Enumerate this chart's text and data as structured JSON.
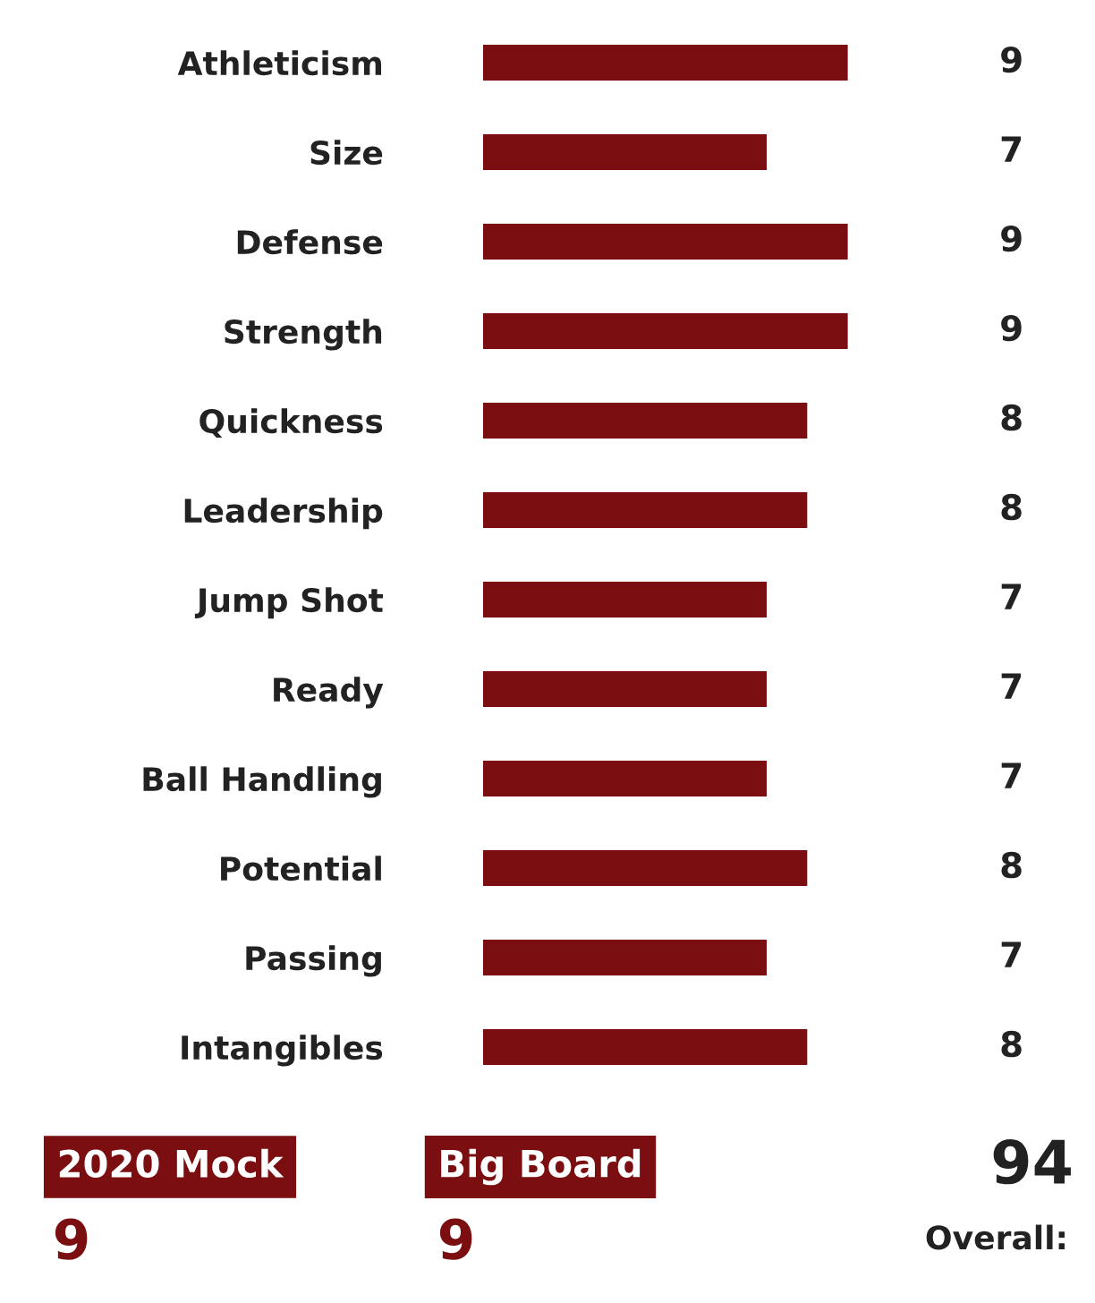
{
  "chart_data": {
    "type": "bar",
    "orientation": "horizontal",
    "categories": [
      "Athleticism",
      "Size",
      "Defense",
      "Strength",
      "Quickness",
      "Leadership",
      "Jump Shot",
      "Ready",
      "Ball Handling",
      "Potential",
      "Passing",
      "Intangibles"
    ],
    "values": [
      9,
      7,
      9,
      9,
      8,
      8,
      7,
      7,
      7,
      8,
      7,
      8
    ],
    "color": "#7b0e10",
    "data_labels": true,
    "tick_labels": "y",
    "grid": false,
    "legend": false,
    "annotations": [
      "2020 Mock",
      "9",
      "Big Board",
      "9",
      "94",
      "Overall:"
    ]
  }
}
